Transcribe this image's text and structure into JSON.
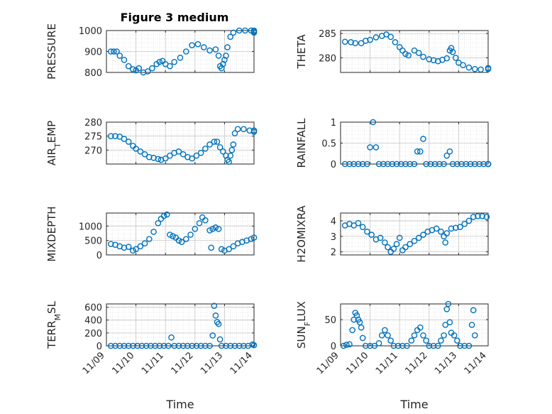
{
  "figure": {
    "title": "Figure 3 medium"
  },
  "chart_data": [
    {
      "type": "scatter",
      "ylabel": "PRESSURE",
      "grid": true,
      "xlim": [
        "11/09",
        "11/14"
      ],
      "ylim": [
        800,
        1000
      ],
      "yticks": [
        800,
        900,
        1000
      ],
      "marker_color": "#0072BD",
      "points": [
        [
          0.15,
          900
        ],
        [
          0.25,
          900
        ],
        [
          0.35,
          900
        ],
        [
          0.45,
          880
        ],
        [
          0.6,
          860
        ],
        [
          0.75,
          830
        ],
        [
          0.9,
          815
        ],
        [
          1.0,
          810
        ],
        [
          1.1,
          820
        ],
        [
          1.25,
          800
        ],
        [
          1.4,
          805
        ],
        [
          1.55,
          820
        ],
        [
          1.7,
          840
        ],
        [
          1.8,
          850
        ],
        [
          1.9,
          855
        ],
        [
          2.0,
          840
        ],
        [
          2.15,
          830
        ],
        [
          2.3,
          850
        ],
        [
          2.5,
          870
        ],
        [
          2.7,
          900
        ],
        [
          2.9,
          930
        ],
        [
          3.1,
          935
        ],
        [
          3.3,
          920
        ],
        [
          3.5,
          905
        ],
        [
          3.7,
          910
        ],
        [
          3.8,
          880
        ],
        [
          3.85,
          830
        ],
        [
          3.9,
          820
        ],
        [
          3.95,
          840
        ],
        [
          4.0,
          860
        ],
        [
          4.05,
          880
        ],
        [
          4.1,
          920
        ],
        [
          4.2,
          970
        ],
        [
          4.3,
          990
        ],
        [
          4.5,
          1000
        ],
        [
          4.7,
          1000
        ],
        [
          4.9,
          1000
        ],
        [
          5.1,
          1000
        ],
        [
          5.3,
          995
        ],
        [
          5.45,
          990
        ]
      ]
    },
    {
      "type": "scatter",
      "ylabel": "THETA",
      "grid": true,
      "xlim": [
        "11/09",
        "11/14"
      ],
      "ylim": [
        277,
        285.6
      ],
      "yticks": [
        280,
        285
      ],
      "marker_color": "#0072BD",
      "points": [
        [
          0.15,
          283.3
        ],
        [
          0.35,
          283.2
        ],
        [
          0.5,
          283.0
        ],
        [
          0.7,
          283.0
        ],
        [
          0.85,
          283.5
        ],
        [
          1.0,
          283.7
        ],
        [
          1.2,
          284.2
        ],
        [
          1.4,
          284.5
        ],
        [
          1.55,
          284.8
        ],
        [
          1.7,
          284.3
        ],
        [
          1.85,
          283.2
        ],
        [
          2.0,
          282.2
        ],
        [
          2.1,
          281.5
        ],
        [
          2.2,
          280.8
        ],
        [
          2.3,
          280.5
        ],
        [
          2.5,
          281.5
        ],
        [
          2.65,
          281.0
        ],
        [
          2.8,
          280.2
        ],
        [
          3.0,
          279.7
        ],
        [
          3.15,
          279.5
        ],
        [
          3.3,
          279.3
        ],
        [
          3.45,
          279.6
        ],
        [
          3.6,
          279.9
        ],
        [
          3.7,
          281.5
        ],
        [
          3.75,
          282.0
        ],
        [
          3.8,
          281.2
        ],
        [
          3.9,
          280.0
        ],
        [
          4.0,
          279.0
        ],
        [
          4.15,
          278.5
        ],
        [
          4.35,
          278.0
        ],
        [
          4.55,
          277.7
        ],
        [
          4.75,
          277.6
        ],
        [
          5.0,
          277.7
        ],
        [
          5.2,
          277.8
        ],
        [
          5.4,
          277.9
        ]
      ]
    },
    {
      "type": "scatter",
      "ylabel": "AIR_TEMP",
      "grid": true,
      "xlim": [
        "11/09",
        "11/14"
      ],
      "ylim": [
        265,
        280
      ],
      "yticks": [
        270,
        275,
        280
      ],
      "marker_color": "#0072BD",
      "points": [
        [
          0.15,
          275
        ],
        [
          0.3,
          275
        ],
        [
          0.45,
          274.8
        ],
        [
          0.6,
          274
        ],
        [
          0.75,
          273
        ],
        [
          0.9,
          271.5
        ],
        [
          1.0,
          270.5
        ],
        [
          1.15,
          269.5
        ],
        [
          1.3,
          268.5
        ],
        [
          1.45,
          267.5
        ],
        [
          1.6,
          267.2
        ],
        [
          1.75,
          266.8
        ],
        [
          1.85,
          266.5
        ],
        [
          2.0,
          267
        ],
        [
          2.15,
          268
        ],
        [
          2.3,
          269
        ],
        [
          2.45,
          269.5
        ],
        [
          2.6,
          268.5
        ],
        [
          2.75,
          267.5
        ],
        [
          2.9,
          267
        ],
        [
          3.05,
          268
        ],
        [
          3.2,
          269
        ],
        [
          3.35,
          270.5
        ],
        [
          3.5,
          272
        ],
        [
          3.65,
          273
        ],
        [
          3.75,
          273
        ],
        [
          3.85,
          271
        ],
        [
          3.95,
          269.5
        ],
        [
          4.05,
          268
        ],
        [
          4.1,
          266.5
        ],
        [
          4.15,
          265.8
        ],
        [
          4.2,
          268
        ],
        [
          4.25,
          270
        ],
        [
          4.3,
          272
        ],
        [
          4.35,
          276
        ],
        [
          4.45,
          277.5
        ],
        [
          4.65,
          277.5
        ],
        [
          4.85,
          277
        ],
        [
          5.05,
          277
        ],
        [
          5.25,
          277
        ],
        [
          5.45,
          276.5
        ]
      ]
    },
    {
      "type": "scatter",
      "ylabel": "RAINFALL",
      "grid": true,
      "xlim": [
        "11/09",
        "11/14"
      ],
      "ylim": [
        0,
        1
      ],
      "yticks": [
        0,
        0.5,
        1
      ],
      "marker_color": "#0072BD",
      "points": [
        [
          0.15,
          0
        ],
        [
          0.3,
          0
        ],
        [
          0.45,
          0
        ],
        [
          0.6,
          0
        ],
        [
          0.75,
          0
        ],
        [
          0.9,
          0
        ],
        [
          1.0,
          0.4
        ],
        [
          1.1,
          1.0
        ],
        [
          1.2,
          0.4
        ],
        [
          1.3,
          0
        ],
        [
          1.45,
          0
        ],
        [
          1.6,
          0
        ],
        [
          1.75,
          0
        ],
        [
          1.9,
          0
        ],
        [
          2.05,
          0
        ],
        [
          2.2,
          0
        ],
        [
          2.35,
          0
        ],
        [
          2.5,
          0
        ],
        [
          2.6,
          0.3
        ],
        [
          2.7,
          0.3
        ],
        [
          2.8,
          0.6
        ],
        [
          2.9,
          0
        ],
        [
          3.05,
          0
        ],
        [
          3.2,
          0
        ],
        [
          3.35,
          0
        ],
        [
          3.5,
          0
        ],
        [
          3.6,
          0.2
        ],
        [
          3.7,
          0.3
        ],
        [
          3.8,
          0
        ],
        [
          3.95,
          0
        ],
        [
          4.1,
          0
        ],
        [
          4.25,
          0
        ],
        [
          4.4,
          0
        ],
        [
          4.55,
          0
        ],
        [
          4.7,
          0
        ],
        [
          4.85,
          0
        ],
        [
          5.0,
          0
        ],
        [
          5.15,
          0
        ],
        [
          5.3,
          0
        ],
        [
          5.45,
          0
        ]
      ]
    },
    {
      "type": "scatter",
      "ylabel": "MIXDEPTH",
      "grid": true,
      "xlim": [
        "11/09",
        "11/14"
      ],
      "ylim": [
        0,
        1450
      ],
      "yticks": [
        0,
        500,
        1000
      ],
      "marker_color": "#0072BD",
      "points": [
        [
          0.15,
          380
        ],
        [
          0.3,
          350
        ],
        [
          0.45,
          300
        ],
        [
          0.6,
          250
        ],
        [
          0.75,
          280
        ],
        [
          0.9,
          150
        ],
        [
          1.0,
          200
        ],
        [
          1.15,
          300
        ],
        [
          1.3,
          400
        ],
        [
          1.45,
          550
        ],
        [
          1.6,
          800
        ],
        [
          1.75,
          1100
        ],
        [
          1.85,
          1250
        ],
        [
          1.95,
          1350
        ],
        [
          2.05,
          1400
        ],
        [
          2.15,
          700
        ],
        [
          2.25,
          650
        ],
        [
          2.35,
          600
        ],
        [
          2.45,
          500
        ],
        [
          2.55,
          450
        ],
        [
          2.7,
          550
        ],
        [
          2.85,
          700
        ],
        [
          3.0,
          900
        ],
        [
          3.15,
          1100
        ],
        [
          3.25,
          1300
        ],
        [
          3.35,
          1200
        ],
        [
          3.5,
          850
        ],
        [
          3.55,
          250
        ],
        [
          3.6,
          900
        ],
        [
          3.7,
          950
        ],
        [
          3.8,
          900
        ],
        [
          3.9,
          200
        ],
        [
          4.0,
          150
        ],
        [
          4.15,
          200
        ],
        [
          4.3,
          300
        ],
        [
          4.45,
          400
        ],
        [
          4.6,
          450
        ],
        [
          4.75,
          500
        ],
        [
          4.9,
          550
        ],
        [
          5.05,
          600
        ]
      ]
    },
    {
      "type": "scatter",
      "ylabel": "H2OMIXRA",
      "grid": true,
      "xlim": [
        "11/09",
        "11/14"
      ],
      "ylim": [
        1.8,
        4.5
      ],
      "yticks": [
        2,
        3,
        4
      ],
      "marker_color": "#0072BD",
      "points": [
        [
          0.15,
          3.7
        ],
        [
          0.3,
          3.8
        ],
        [
          0.45,
          3.7
        ],
        [
          0.6,
          3.85
        ],
        [
          0.75,
          3.6
        ],
        [
          0.9,
          3.3
        ],
        [
          1.05,
          3.1
        ],
        [
          1.2,
          2.8
        ],
        [
          1.35,
          2.9
        ],
        [
          1.5,
          2.6
        ],
        [
          1.6,
          2.3
        ],
        [
          1.7,
          2.0
        ],
        [
          1.8,
          2.2
        ],
        [
          1.9,
          2.5
        ],
        [
          2.0,
          2.9
        ],
        [
          2.1,
          2.1
        ],
        [
          2.2,
          2.3
        ],
        [
          2.35,
          2.5
        ],
        [
          2.5,
          2.7
        ],
        [
          2.65,
          2.9
        ],
        [
          2.8,
          3.1
        ],
        [
          2.95,
          3.3
        ],
        [
          3.1,
          3.4
        ],
        [
          3.25,
          3.5
        ],
        [
          3.4,
          3.3
        ],
        [
          3.5,
          3.0
        ],
        [
          3.55,
          2.6
        ],
        [
          3.6,
          3.2
        ],
        [
          3.75,
          3.5
        ],
        [
          3.9,
          3.55
        ],
        [
          4.05,
          3.6
        ],
        [
          4.2,
          3.8
        ],
        [
          4.35,
          4.0
        ],
        [
          4.5,
          4.25
        ],
        [
          4.65,
          4.3
        ],
        [
          4.8,
          4.3
        ],
        [
          4.95,
          4.25
        ]
      ]
    },
    {
      "type": "scatter",
      "ylabel": "TERR_MSL",
      "grid": true,
      "xlim": [
        "11/09",
        "11/14"
      ],
      "ylim": [
        0,
        650
      ],
      "yticks": [
        0,
        200,
        400,
        600
      ],
      "xticks": [
        "11/09",
        "11/10",
        "11/11",
        "11/12",
        "11/13",
        "11/14"
      ],
      "xlabel": "Time",
      "marker_color": "#0072BD",
      "points": [
        [
          0.15,
          0
        ],
        [
          0.3,
          0
        ],
        [
          0.45,
          0
        ],
        [
          0.6,
          0
        ],
        [
          0.75,
          0
        ],
        [
          0.9,
          0
        ],
        [
          1.05,
          0
        ],
        [
          1.2,
          0
        ],
        [
          1.35,
          0
        ],
        [
          1.5,
          0
        ],
        [
          1.65,
          0
        ],
        [
          1.8,
          0
        ],
        [
          1.95,
          0
        ],
        [
          2.1,
          0
        ],
        [
          2.2,
          130
        ],
        [
          2.3,
          0
        ],
        [
          2.45,
          0
        ],
        [
          2.6,
          0
        ],
        [
          2.75,
          0
        ],
        [
          2.9,
          0
        ],
        [
          3.05,
          0
        ],
        [
          3.2,
          0
        ],
        [
          3.35,
          0
        ],
        [
          3.5,
          0
        ],
        [
          3.6,
          160
        ],
        [
          3.65,
          620
        ],
        [
          3.7,
          470
        ],
        [
          3.75,
          370
        ],
        [
          3.8,
          340
        ],
        [
          3.85,
          100
        ],
        [
          3.9,
          0
        ],
        [
          4.05,
          0
        ],
        [
          4.2,
          0
        ],
        [
          4.35,
          0
        ],
        [
          4.5,
          0
        ],
        [
          4.65,
          0
        ],
        [
          4.8,
          0
        ],
        [
          4.95,
          20
        ],
        [
          5.1,
          10
        ]
      ]
    },
    {
      "type": "scatter",
      "ylabel": "SUN_FLUX",
      "grid": true,
      "xlim": [
        "11/09",
        "11/14"
      ],
      "ylim": [
        0,
        80
      ],
      "yticks": [
        0,
        50
      ],
      "xticks": [
        "11/09",
        "11/10",
        "11/11",
        "11/12",
        "11/13",
        "11/14"
      ],
      "xlabel": "Time",
      "marker_color": "#0072BD",
      "points": [
        [
          0.1,
          0
        ],
        [
          0.2,
          2
        ],
        [
          0.3,
          3
        ],
        [
          0.4,
          30
        ],
        [
          0.45,
          50
        ],
        [
          0.5,
          63
        ],
        [
          0.55,
          58
        ],
        [
          0.6,
          50
        ],
        [
          0.65,
          45
        ],
        [
          0.7,
          35
        ],
        [
          0.75,
          15
        ],
        [
          0.85,
          0
        ],
        [
          1.0,
          0
        ],
        [
          1.15,
          0
        ],
        [
          1.3,
          5
        ],
        [
          1.4,
          20
        ],
        [
          1.5,
          30
        ],
        [
          1.6,
          20
        ],
        [
          1.7,
          10
        ],
        [
          1.8,
          0
        ],
        [
          1.95,
          0
        ],
        [
          2.1,
          0
        ],
        [
          2.25,
          0
        ],
        [
          2.4,
          10
        ],
        [
          2.5,
          20
        ],
        [
          2.6,
          30
        ],
        [
          2.7,
          35
        ],
        [
          2.8,
          20
        ],
        [
          2.9,
          10
        ],
        [
          3.0,
          0
        ],
        [
          3.15,
          0
        ],
        [
          3.3,
          0
        ],
        [
          3.4,
          10
        ],
        [
          3.5,
          20
        ],
        [
          3.55,
          40
        ],
        [
          3.6,
          70
        ],
        [
          3.65,
          80
        ],
        [
          3.7,
          45
        ],
        [
          3.75,
          25
        ],
        [
          3.85,
          20
        ],
        [
          3.95,
          10
        ],
        [
          4.05,
          0
        ],
        [
          4.2,
          0
        ],
        [
          4.35,
          0
        ],
        [
          4.45,
          40
        ],
        [
          4.5,
          68
        ],
        [
          4.55,
          20
        ]
      ]
    }
  ]
}
